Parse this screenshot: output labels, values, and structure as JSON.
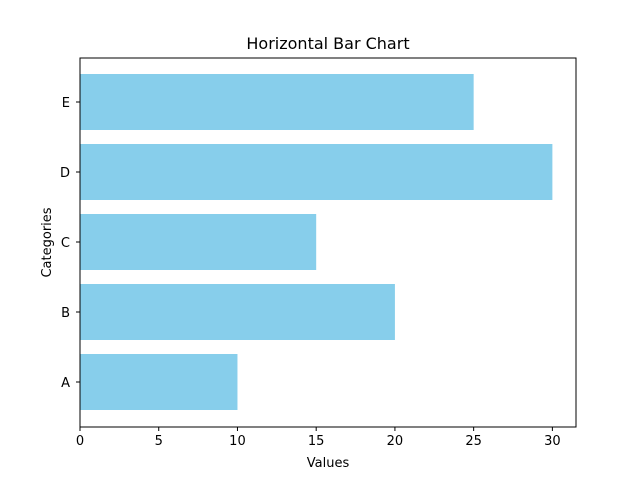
{
  "chart_data": {
    "type": "bar",
    "orientation": "horizontal",
    "title": "Horizontal Bar Chart",
    "xlabel": "Values",
    "ylabel": "Categories",
    "categories": [
      "A",
      "B",
      "C",
      "D",
      "E"
    ],
    "values": [
      10,
      20,
      15,
      30,
      25
    ],
    "xlim": [
      0,
      31.5
    ],
    "xticks": [
      0,
      5,
      10,
      15,
      20,
      25,
      30
    ],
    "grid": false,
    "bar_color": "#87ceeb"
  }
}
